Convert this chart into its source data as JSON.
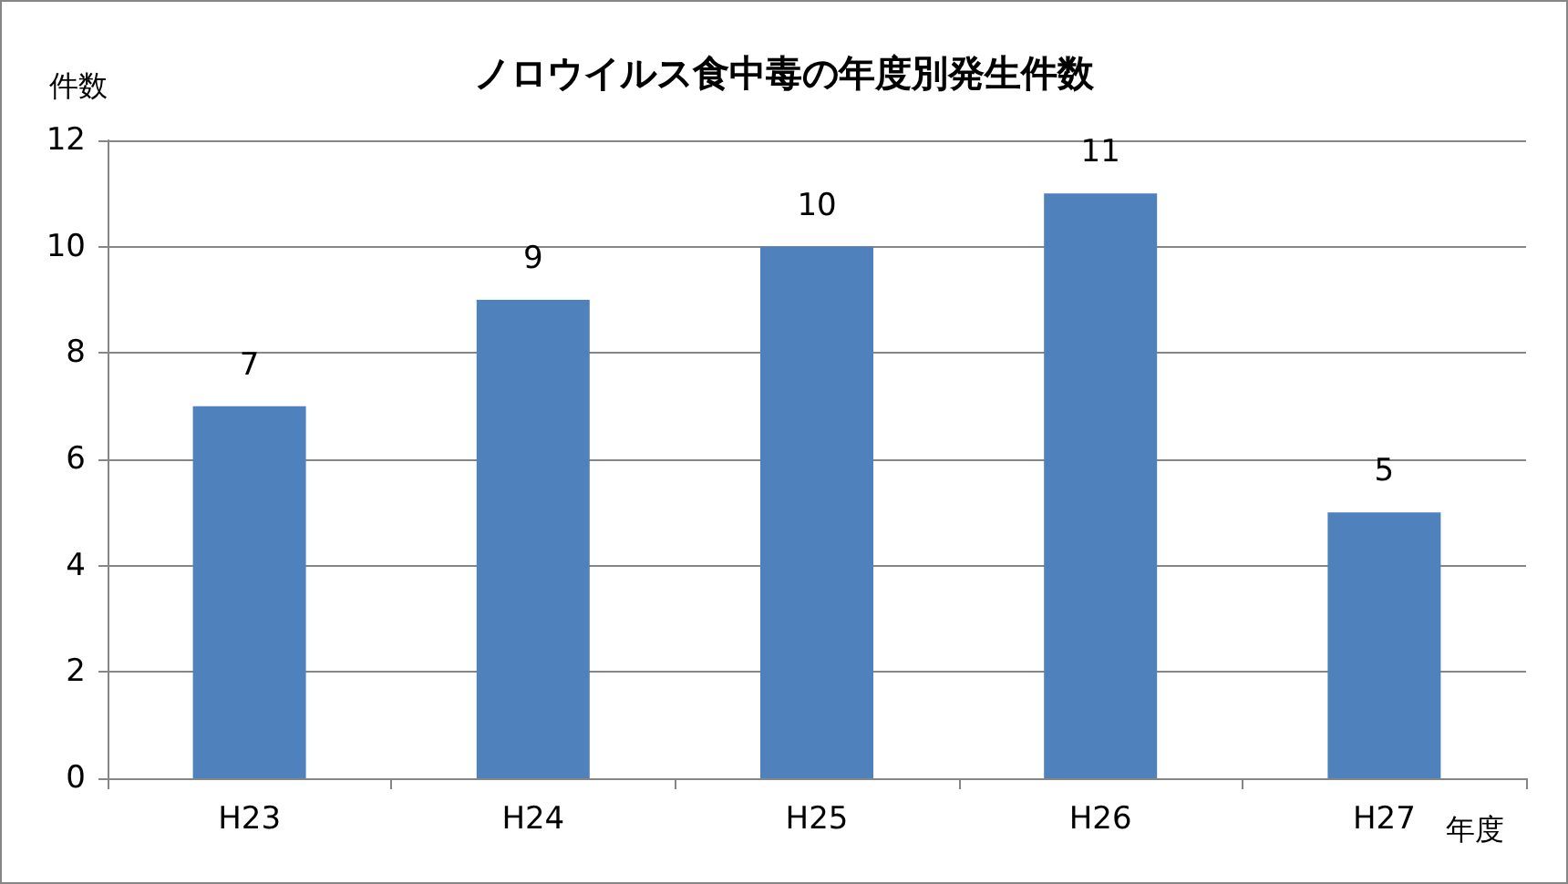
{
  "chart_data": {
    "type": "bar",
    "title": "ノロウイルス食中毒の年度別発生件数",
    "xlabel": "年度",
    "ylabel": "件数",
    "categories": [
      "H23",
      "H24",
      "H25",
      "H26",
      "H27"
    ],
    "values": [
      7,
      9,
      10,
      11,
      5
    ],
    "color": "#4f81bd",
    "ylim": [
      0,
      12
    ],
    "yticks": [
      0,
      2,
      4,
      6,
      8,
      10,
      12
    ],
    "grid": "y",
    "data_labels": true
  }
}
